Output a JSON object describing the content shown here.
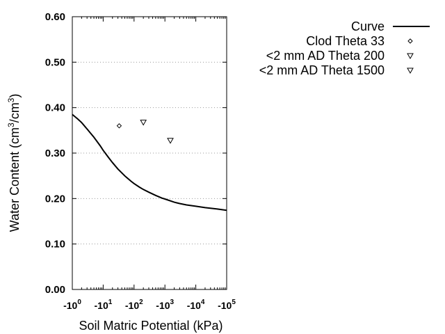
{
  "chart_data": {
    "type": "scatter",
    "xlabel": "Soil Matric Potential (kPa)",
    "ylabel": "Water Content (cm3/cm3)",
    "ylabel_parts": {
      "pre": "Water Content (cm",
      "exp1": "3",
      "mid": "/cm",
      "exp2": "3",
      "post": ")"
    },
    "x_scale": "log",
    "xlim": [
      1,
      100000
    ],
    "ylim": [
      0,
      0.6
    ],
    "y_ticks": [
      "0.00",
      "0.10",
      "0.20",
      "0.30",
      "0.40",
      "0.50",
      "0.60"
    ],
    "x_ticks": [
      {
        "base": "-10",
        "exp": "0"
      },
      {
        "base": "-10",
        "exp": "1"
      },
      {
        "base": "-10",
        "exp": "2"
      },
      {
        "base": "-10",
        "exp": "3"
      },
      {
        "base": "-10",
        "exp": "4"
      },
      {
        "base": "-10",
        "exp": "5"
      }
    ],
    "grid": "horizontal-dotted",
    "legend_position": "right",
    "series": [
      {
        "name": "Curve",
        "kind": "line",
        "x": [
          1,
          1.5,
          2,
          3,
          5,
          8,
          10,
          15,
          20,
          30,
          50,
          80,
          100,
          150,
          200,
          300,
          500,
          800,
          1000,
          2000,
          3000,
          5000,
          10000,
          20000,
          50000,
          100000
        ],
        "y": [
          0.385,
          0.375,
          0.367,
          0.353,
          0.335,
          0.316,
          0.306,
          0.29,
          0.279,
          0.265,
          0.25,
          0.238,
          0.233,
          0.225,
          0.22,
          0.214,
          0.207,
          0.201,
          0.199,
          0.192,
          0.189,
          0.186,
          0.183,
          0.18,
          0.177,
          0.174
        ]
      },
      {
        "name": "Clod Theta 33",
        "kind": "points",
        "marker": "diamond",
        "x": [
          33
        ],
        "y": [
          0.36
        ]
      },
      {
        "name": "<2 mm AD Theta 200",
        "kind": "points",
        "marker": "triangle-down",
        "x": [
          200
        ],
        "y": [
          0.368
        ]
      },
      {
        "name": "<2 mm AD Theta 1500",
        "kind": "points",
        "marker": "triangle-down",
        "x": [
          1500
        ],
        "y": [
          0.328
        ]
      }
    ]
  }
}
